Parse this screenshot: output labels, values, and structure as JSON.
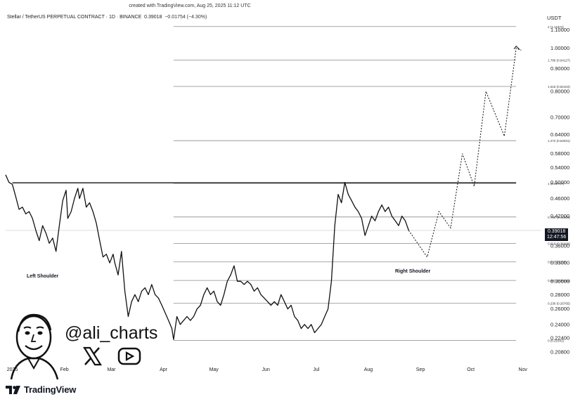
{
  "created_line": "created with TradingView.com, Aug 25, 2025 11:12 UTC",
  "symbol_line": "Stellar / TetherUS PERPETUAL CONTRACT · 1D · BINANCE",
  "last_price": "0.39018",
  "change": "−0.01754 (−4.30%)",
  "currency": "USDT",
  "price_tag": {
    "price": "0.39018",
    "countdown": "12:47:56"
  },
  "brand": "TradingView",
  "handle": "@ali_charts",
  "icons": {
    "logo": "tradingview-logo-icon",
    "x": "x-logo-icon",
    "youtube": "youtube-play-icon",
    "avatar": "cartoon-avatar-icon"
  },
  "annotations": {
    "left_shoulder": "Left Shoulder",
    "right_shoulder": "Right Shoulder"
  },
  "chart_data": {
    "type": "line",
    "scale": "log",
    "ylim": [
      0.2,
      1.13
    ],
    "xlim": [
      "2024-12-28",
      "2025-11-12"
    ],
    "x_ticks": [
      {
        "date": "2025-01-01",
        "label": "2025"
      },
      {
        "date": "2025-02-01",
        "label": "Feb"
      },
      {
        "date": "2025-03-01",
        "label": "Mar"
      },
      {
        "date": "2025-04-01",
        "label": "Apr"
      },
      {
        "date": "2025-05-01",
        "label": "May"
      },
      {
        "date": "2025-06-01",
        "label": "Jun"
      },
      {
        "date": "2025-07-01",
        "label": "Jul"
      },
      {
        "date": "2025-08-01",
        "label": "Aug"
      },
      {
        "date": "2025-09-01",
        "label": "Sep"
      },
      {
        "date": "2025-10-01",
        "label": "Oct"
      },
      {
        "date": "2025-11-01",
        "label": "Nov"
      }
    ],
    "y_ticks": [
      0.208,
      0.224,
      0.24,
      0.26,
      0.28,
      0.3,
      0.33,
      0.36,
      0.42,
      0.46,
      0.5,
      0.54,
      0.58,
      0.64,
      0.7,
      0.8,
      0.9,
      1.0,
      1.1
    ],
    "y_tick_labels": [
      "0.20800",
      "0.22400",
      "0.24000",
      "0.26000",
      "0.28000",
      "0.30000",
      "0.33000",
      "0.36000",
      "0.42000",
      "0.46000",
      "0.50000",
      "0.54000",
      "0.58000",
      "0.64000",
      "0.70000",
      "0.80000",
      "0.90000",
      "1.00000",
      "1.10000"
    ],
    "fib_levels": [
      {
        "label": "0 (0.22101)",
        "value": 0.22101
      },
      {
        "label": "0.236 (0.26765)",
        "value": 0.26765
      },
      {
        "label": "0.382 (0.30131)",
        "value": 0.30131
      },
      {
        "label": "0.5 (0.33158)",
        "value": 0.33158
      },
      {
        "label": "0.618 (0.36490)",
        "value": 0.3649
      },
      {
        "label": "0.786 (0.41818)",
        "value": 0.41818
      },
      {
        "label": "1 (0.49747)",
        "value": 0.49747
      },
      {
        "label": "1.272 (0.62031)",
        "value": 0.62031
      },
      {
        "label": "1.618 (0.82103)",
        "value": 0.82103
      },
      {
        "label": "1.786 (0.94127)",
        "value": 0.94127
      },
      {
        "label": "2 (1.11874)",
        "value": 1.11874
      }
    ],
    "fib_range": [
      "2025-04-07",
      "2025-10-28"
    ],
    "neckline": {
      "value": 0.499,
      "from": "2025-01-01",
      "to": "2025-10-28"
    },
    "last_price_line": 0.39018,
    "series": [
      {
        "values": [
          [
            "2024-12-28",
            0.52
          ],
          [
            "2024-12-30",
            0.5
          ],
          [
            "2025-01-01",
            0.495
          ],
          [
            "2025-01-03",
            0.465
          ],
          [
            "2025-01-05",
            0.435
          ],
          [
            "2025-01-07",
            0.44
          ],
          [
            "2025-01-09",
            0.425
          ],
          [
            "2025-01-11",
            0.43
          ],
          [
            "2025-01-13",
            0.415
          ],
          [
            "2025-01-15",
            0.39
          ],
          [
            "2025-01-17",
            0.37
          ],
          [
            "2025-01-19",
            0.4
          ],
          [
            "2025-01-21",
            0.385
          ],
          [
            "2025-01-23",
            0.365
          ],
          [
            "2025-01-25",
            0.375
          ],
          [
            "2025-01-27",
            0.35
          ],
          [
            "2025-01-29",
            0.4
          ],
          [
            "2025-01-31",
            0.455
          ],
          [
            "2025-02-02",
            0.48
          ],
          [
            "2025-02-03",
            0.415
          ],
          [
            "2025-02-05",
            0.43
          ],
          [
            "2025-02-07",
            0.46
          ],
          [
            "2025-02-09",
            0.485
          ],
          [
            "2025-02-10",
            0.46
          ],
          [
            "2025-02-12",
            0.485
          ],
          [
            "2025-02-14",
            0.44
          ],
          [
            "2025-02-16",
            0.45
          ],
          [
            "2025-02-18",
            0.43
          ],
          [
            "2025-02-20",
            0.405
          ],
          [
            "2025-02-22",
            0.37
          ],
          [
            "2025-02-24",
            0.34
          ],
          [
            "2025-02-26",
            0.345
          ],
          [
            "2025-02-28",
            0.33
          ],
          [
            "2025-03-02",
            0.345
          ],
          [
            "2025-03-03",
            0.33
          ],
          [
            "2025-03-05",
            0.31
          ],
          [
            "2025-03-07",
            0.35
          ],
          [
            "2025-03-09",
            0.285
          ],
          [
            "2025-03-11",
            0.25
          ],
          [
            "2025-03-13",
            0.27
          ],
          [
            "2025-03-15",
            0.28
          ],
          [
            "2025-03-17",
            0.27
          ],
          [
            "2025-03-19",
            0.285
          ],
          [
            "2025-03-21",
            0.29
          ],
          [
            "2025-03-23",
            0.28
          ],
          [
            "2025-03-25",
            0.295
          ],
          [
            "2025-03-27",
            0.28
          ],
          [
            "2025-03-29",
            0.275
          ],
          [
            "2025-03-31",
            0.265
          ],
          [
            "2025-04-02",
            0.255
          ],
          [
            "2025-04-04",
            0.245
          ],
          [
            "2025-04-06",
            0.235
          ],
          [
            "2025-04-07",
            0.222
          ],
          [
            "2025-04-09",
            0.25
          ],
          [
            "2025-04-11",
            0.24
          ],
          [
            "2025-04-13",
            0.245
          ],
          [
            "2025-04-15",
            0.25
          ],
          [
            "2025-04-17",
            0.245
          ],
          [
            "2025-04-19",
            0.25
          ],
          [
            "2025-04-21",
            0.26
          ],
          [
            "2025-04-23",
            0.265
          ],
          [
            "2025-04-25",
            0.28
          ],
          [
            "2025-04-27",
            0.29
          ],
          [
            "2025-04-29",
            0.28
          ],
          [
            "2025-05-01",
            0.285
          ],
          [
            "2025-05-03",
            0.27
          ],
          [
            "2025-05-05",
            0.265
          ],
          [
            "2025-05-07",
            0.28
          ],
          [
            "2025-05-09",
            0.3
          ],
          [
            "2025-05-11",
            0.31
          ],
          [
            "2025-05-13",
            0.325
          ],
          [
            "2025-05-15",
            0.3
          ],
          [
            "2025-05-17",
            0.3
          ],
          [
            "2025-05-19",
            0.295
          ],
          [
            "2025-05-21",
            0.3
          ],
          [
            "2025-05-23",
            0.295
          ],
          [
            "2025-05-25",
            0.285
          ],
          [
            "2025-05-27",
            0.29
          ],
          [
            "2025-05-29",
            0.28
          ],
          [
            "2025-05-31",
            0.275
          ],
          [
            "2025-06-02",
            0.27
          ],
          [
            "2025-06-04",
            0.265
          ],
          [
            "2025-06-06",
            0.27
          ],
          [
            "2025-06-08",
            0.265
          ],
          [
            "2025-06-10",
            0.28
          ],
          [
            "2025-06-12",
            0.27
          ],
          [
            "2025-06-14",
            0.26
          ],
          [
            "2025-06-16",
            0.265
          ],
          [
            "2025-06-18",
            0.25
          ],
          [
            "2025-06-20",
            0.245
          ],
          [
            "2025-06-22",
            0.235
          ],
          [
            "2025-06-24",
            0.24
          ],
          [
            "2025-06-26",
            0.235
          ],
          [
            "2025-06-28",
            0.24
          ],
          [
            "2025-06-30",
            0.23
          ],
          [
            "2025-07-02",
            0.235
          ],
          [
            "2025-07-04",
            0.24
          ],
          [
            "2025-07-06",
            0.25
          ],
          [
            "2025-07-08",
            0.26
          ],
          [
            "2025-07-10",
            0.3
          ],
          [
            "2025-07-12",
            0.4
          ],
          [
            "2025-07-14",
            0.47
          ],
          [
            "2025-07-16",
            0.45
          ],
          [
            "2025-07-18",
            0.5
          ],
          [
            "2025-07-20",
            0.47
          ],
          [
            "2025-07-22",
            0.455
          ],
          [
            "2025-07-24",
            0.44
          ],
          [
            "2025-07-26",
            0.43
          ],
          [
            "2025-07-28",
            0.415
          ],
          [
            "2025-07-30",
            0.38
          ],
          [
            "2025-08-01",
            0.4
          ],
          [
            "2025-08-03",
            0.42
          ],
          [
            "2025-08-05",
            0.41
          ],
          [
            "2025-08-07",
            0.43
          ],
          [
            "2025-08-09",
            0.445
          ],
          [
            "2025-08-11",
            0.43
          ],
          [
            "2025-08-13",
            0.44
          ],
          [
            "2025-08-15",
            0.42
          ],
          [
            "2025-08-17",
            0.41
          ],
          [
            "2025-08-19",
            0.4
          ],
          [
            "2025-08-21",
            0.42
          ],
          [
            "2025-08-23",
            0.41
          ],
          [
            "2025-08-25",
            0.39018
          ]
        ]
      },
      {
        "values": [
          [
            "2025-08-25",
            0.39018
          ],
          [
            "2025-09-05",
            0.34
          ],
          [
            "2025-09-12",
            0.43
          ],
          [
            "2025-09-19",
            0.395
          ],
          [
            "2025-09-26",
            0.58
          ],
          [
            "2025-10-03",
            0.49
          ],
          [
            "2025-10-10",
            0.8
          ],
          [
            "2025-10-21",
            0.635
          ],
          [
            "2025-10-28",
            1.0
          ],
          [
            "2025-10-31",
            0.99
          ]
        ]
      }
    ]
  }
}
